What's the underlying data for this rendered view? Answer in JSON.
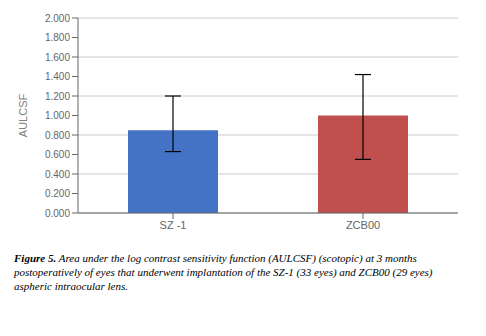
{
  "chart_data": {
    "type": "bar",
    "categories": [
      "SZ -1",
      "ZCB00"
    ],
    "values": [
      0.85,
      1.0
    ],
    "error_lower": [
      0.22,
      0.45
    ],
    "error_upper": [
      0.35,
      0.42
    ],
    "colors": [
      "#4472C4",
      "#C0504D"
    ],
    "y_label": "AULCSF",
    "ylim": [
      0.0,
      2.0
    ],
    "yticks": [
      {
        "value": 0.0,
        "label": "0.000"
      },
      {
        "value": 0.2,
        "label": "0.200"
      },
      {
        "value": 0.4,
        "label": "0.400"
      },
      {
        "value": 0.6,
        "label": "0.600"
      },
      {
        "value": 0.8,
        "label": "0.800"
      },
      {
        "value": 1.0,
        "label": "1.000"
      },
      {
        "value": 1.2,
        "label": "1.200"
      },
      {
        "value": 1.4,
        "label": "1.400"
      },
      {
        "value": 1.6,
        "label": "1.600"
      },
      {
        "value": 1.8,
        "label": "1.800"
      },
      {
        "value": 2.0,
        "label": "2.000"
      }
    ],
    "grid": true,
    "annotations": [
      "Figure 5.",
      "Area under the log contrast sensitivity function (AULCSF) (scotopic) at 3 months postoperatively of eyes that underwent implantation of the SZ-1 (33 eyes) and ZCB00 (29 eyes) aspheric intraocular lens."
    ]
  }
}
